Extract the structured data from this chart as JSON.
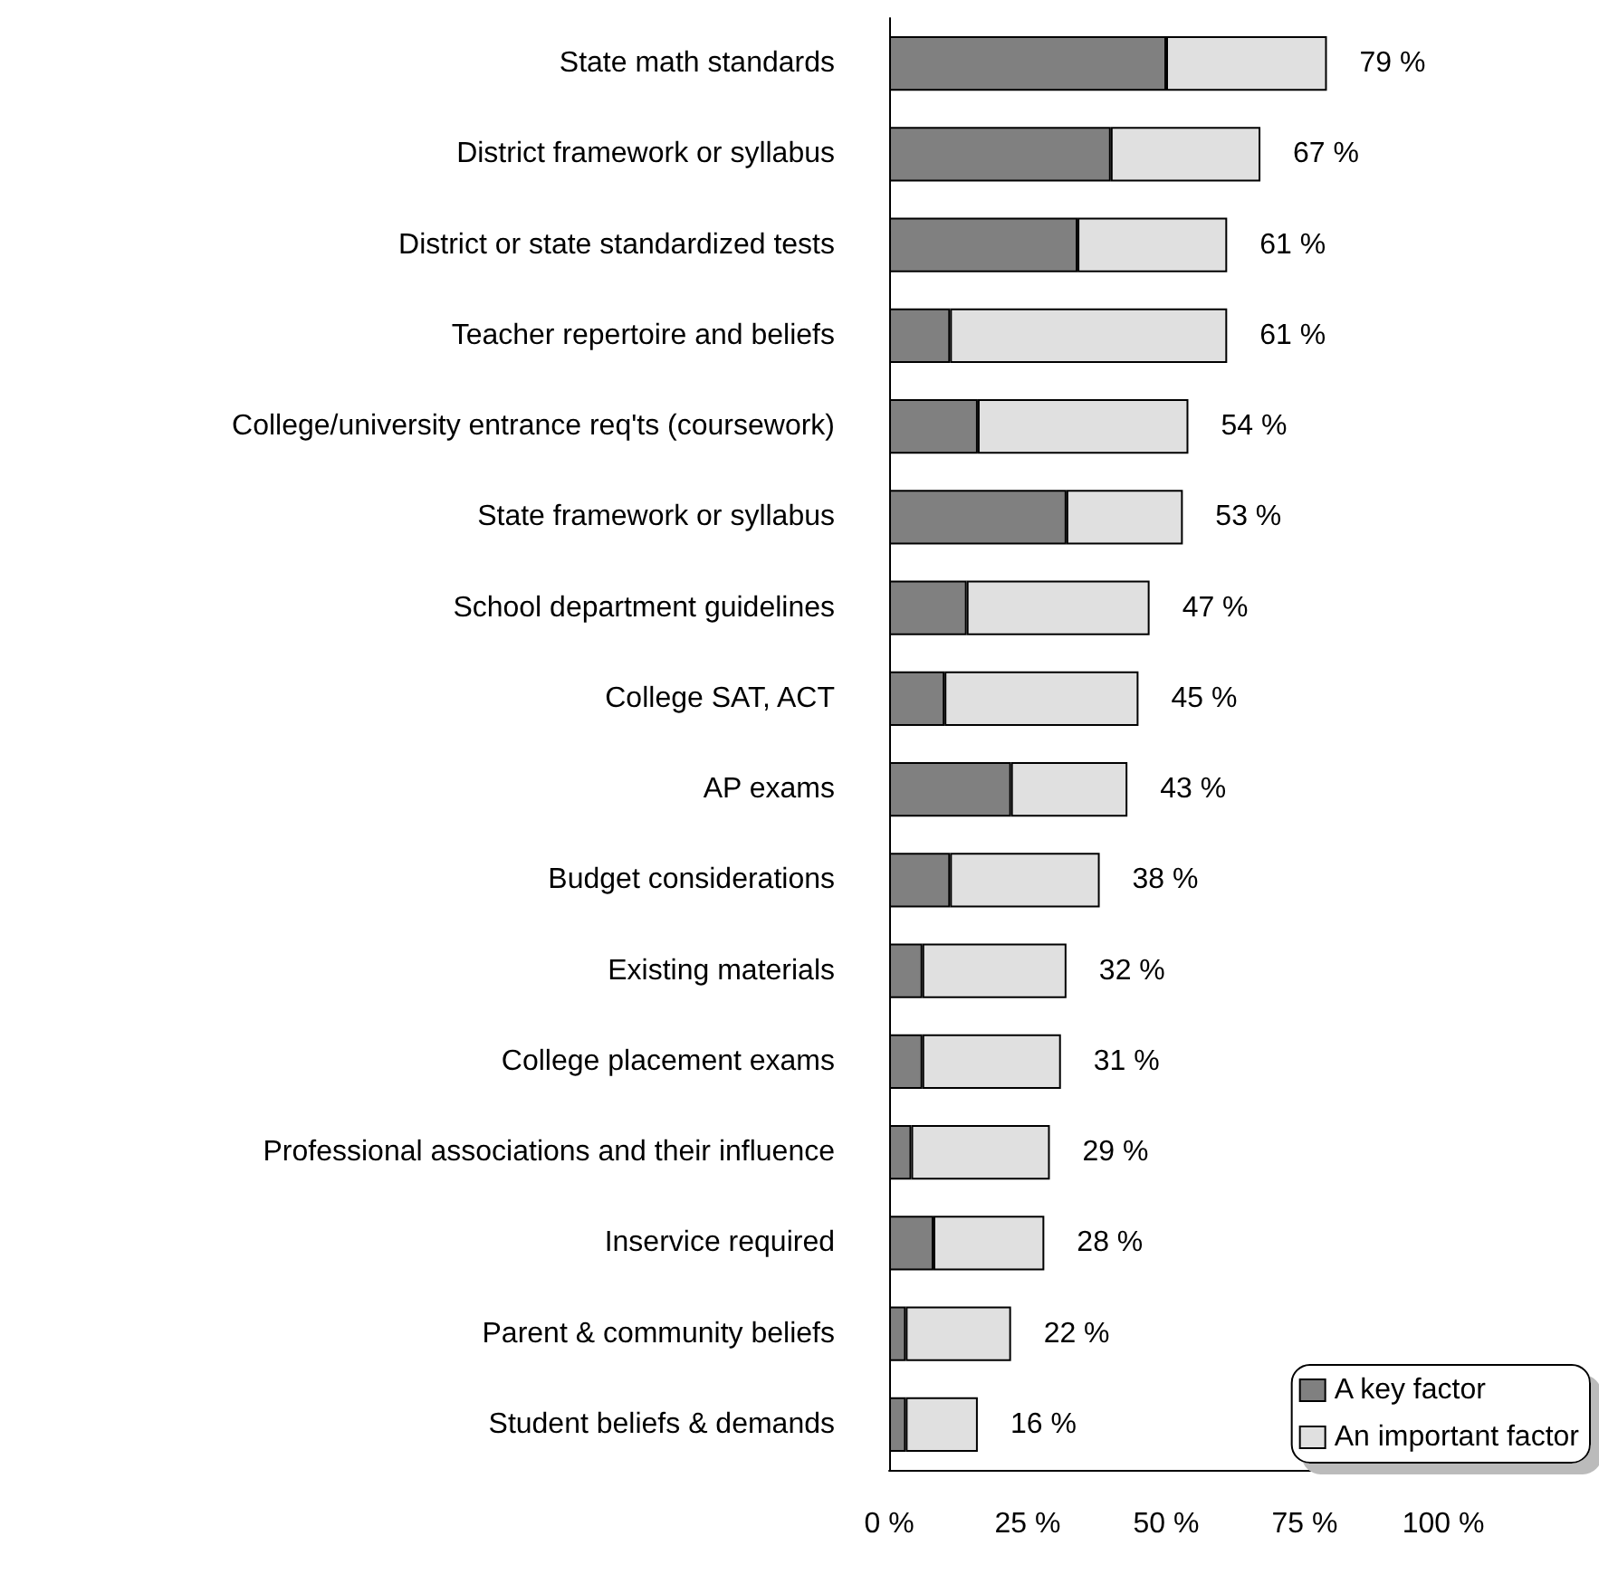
{
  "chart_data": {
    "type": "bar",
    "orientation": "horizontal",
    "stacked": true,
    "categories": [
      "State math standards",
      "District framework or syllabus",
      "District or state standardized tests",
      "Teacher repertoire and beliefs",
      "College/university entrance req'ts (coursework)",
      "State framework or syllabus",
      "School department guidelines",
      "College SAT, ACT",
      "AP exams",
      "Budget considerations",
      "Existing materials",
      "College placement exams",
      "Professional associations and their influence",
      "Inservice required",
      "Parent & community beliefs",
      "Student beliefs & demands"
    ],
    "series": [
      {
        "name": "A key factor",
        "color": "#808080",
        "values": [
          50,
          40,
          34,
          11,
          16,
          32,
          14,
          10,
          22,
          11,
          6,
          6,
          4,
          8,
          3,
          3
        ]
      },
      {
        "name": "An important factor",
        "color": "#e0e0e0",
        "values": [
          29,
          27,
          27,
          50,
          38,
          21,
          33,
          35,
          21,
          27,
          26,
          25,
          25,
          20,
          19,
          13
        ]
      }
    ],
    "totals": [
      "79 %",
      "67 %",
      "61 %",
      "61 %",
      "54 %",
      "53 %",
      "47 %",
      "45 %",
      "43 %",
      "38 %",
      "32 %",
      "31 %",
      "29 %",
      "28 %",
      "22 %",
      "16 %"
    ],
    "xlim": [
      0,
      100
    ],
    "xticks": [
      {
        "value": 0,
        "label": "0 %"
      },
      {
        "value": 25,
        "label": "25 %"
      },
      {
        "value": 50,
        "label": "50 %"
      },
      {
        "value": 75,
        "label": "75 %"
      },
      {
        "value": 100,
        "label": "100 %"
      }
    ],
    "grid": false,
    "legend": "bottom right"
  }
}
